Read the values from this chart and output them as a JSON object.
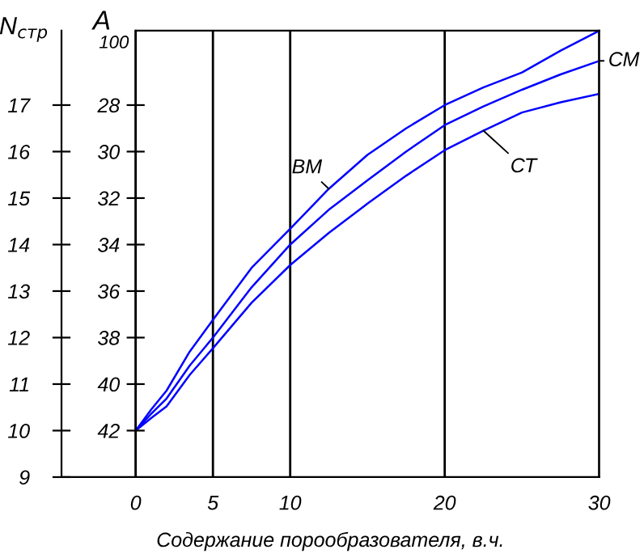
{
  "chart_data": {
    "type": "line",
    "xlabel": "Содержание порообразователя, в.ч.",
    "ylabel": "N$_{стр}$",
    "y2label": "A",
    "annotations": [
      "100"
    ],
    "x": [
      0,
      1,
      2,
      3.5,
      5,
      7.5,
      10,
      12.5,
      15,
      17.5,
      20,
      22.5,
      25,
      27.5,
      30
    ],
    "series": [
      {
        "name": "ВМ",
        "color": "#0000ff",
        "values": [
          10,
          10.45,
          10.86,
          11.7,
          12.38,
          13.5,
          14.34,
          15.2,
          15.93,
          16.5,
          17.0,
          17.38,
          17.7,
          18.17,
          18.6
        ]
      },
      {
        "name": "СМ",
        "color": "#0000ff",
        "values": [
          10,
          10.36,
          10.69,
          11.4,
          12.0,
          13.08,
          14.0,
          14.75,
          15.38,
          16.0,
          16.57,
          16.97,
          17.33,
          17.66,
          17.95
        ]
      },
      {
        "name": "СТ",
        "color": "#0000ff",
        "values": [
          10,
          10.27,
          10.52,
          11.2,
          11.77,
          12.75,
          13.56,
          14.25,
          14.88,
          15.48,
          16.03,
          16.45,
          16.84,
          17.06,
          17.24
        ]
      }
    ],
    "xlim": [
      -4.8,
      30
    ],
    "xticks": [
      0,
      5,
      10,
      20,
      30
    ],
    "ylim": [
      9,
      18.6
    ],
    "yticks": [
      9,
      10,
      11,
      12,
      13,
      14,
      15,
      16,
      17
    ],
    "y2lim": [
      44,
      24.8
    ],
    "y2ticks": [
      42,
      40,
      38,
      36,
      34,
      32,
      30,
      28
    ],
    "grid": "x",
    "legend": false,
    "marker": "none",
    "line_style": "solid"
  }
}
